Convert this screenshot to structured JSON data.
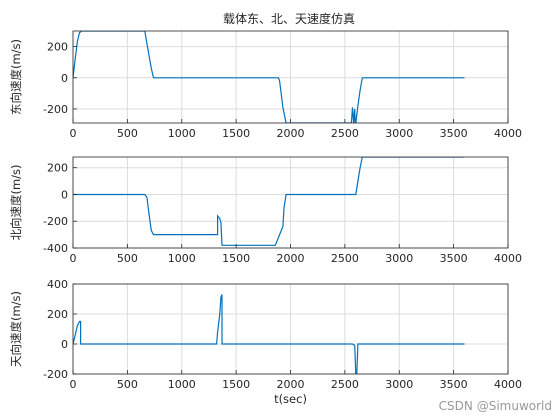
{
  "figure_title": "载体东、北、天速度仿真",
  "watermark": "CSDN @Simuworld",
  "colors": {
    "line": "#0072BD",
    "grid": "#dcdcdc",
    "axis": "#262626"
  },
  "chart_data": [
    {
      "type": "line",
      "title": "载体东、北、天速度仿真",
      "xlabel": "",
      "ylabel": "东向速度(m/s)",
      "xlim": [
        0,
        4000
      ],
      "ylim": [
        -290,
        300
      ],
      "xticks": [
        0,
        500,
        1000,
        1500,
        2000,
        2500,
        3000,
        3500,
        4000
      ],
      "yticks": [
        -200,
        0,
        200
      ],
      "grid": true,
      "x": [
        0,
        20,
        40,
        60,
        80,
        640,
        660,
        680,
        700,
        720,
        740,
        1890,
        1900,
        1930,
        1960,
        2000,
        2560,
        2570,
        2580,
        2590,
        2595,
        2600,
        2620,
        2640,
        2660,
        3600
      ],
      "y": [
        0,
        120,
        230,
        290,
        300,
        300,
        300,
        220,
        140,
        60,
        0,
        0,
        -20,
        -190,
        -290,
        -290,
        -290,
        -190,
        -290,
        -200,
        -290,
        -290,
        -180,
        -80,
        0,
        0
      ]
    },
    {
      "type": "line",
      "title": "",
      "xlabel": "",
      "ylabel": "北向速度(m/s)",
      "xlim": [
        0,
        4000
      ],
      "ylim": [
        -400,
        280
      ],
      "xticks": [
        0,
        500,
        1000,
        1500,
        2000,
        2500,
        3000,
        3500,
        4000
      ],
      "yticks": [
        -400,
        -200,
        0,
        200
      ],
      "grid": true,
      "x": [
        0,
        660,
        680,
        700,
        720,
        740,
        1330,
        1330,
        1350,
        1360,
        1370,
        1370,
        1860,
        1900,
        1930,
        1940,
        1960,
        2600,
        2620,
        2640,
        2660,
        3600
      ],
      "y": [
        0,
        0,
        -20,
        -150,
        -270,
        -300,
        -300,
        -160,
        -180,
        -210,
        -380,
        -380,
        -380,
        -300,
        -240,
        -100,
        0,
        0,
        100,
        200,
        280,
        280
      ]
    },
    {
      "type": "line",
      "title": "",
      "xlabel": "t(sec)",
      "ylabel": "天向速度(m/s)",
      "xlim": [
        0,
        4000
      ],
      "ylim": [
        -200,
        400
      ],
      "xticks": [
        0,
        500,
        1000,
        1500,
        2000,
        2500,
        3000,
        3500,
        4000
      ],
      "yticks": [
        -200,
        0,
        200,
        400
      ],
      "grid": true,
      "x": [
        0,
        20,
        40,
        60,
        70,
        70,
        1320,
        1330,
        1350,
        1360,
        1370,
        1370,
        2570,
        2590,
        2600,
        2600,
        2610,
        2620,
        3600
      ],
      "y": [
        0,
        60,
        120,
        150,
        150,
        0,
        0,
        80,
        200,
        310,
        330,
        0,
        0,
        -10,
        -200,
        -200,
        -200,
        0,
        0
      ]
    }
  ]
}
